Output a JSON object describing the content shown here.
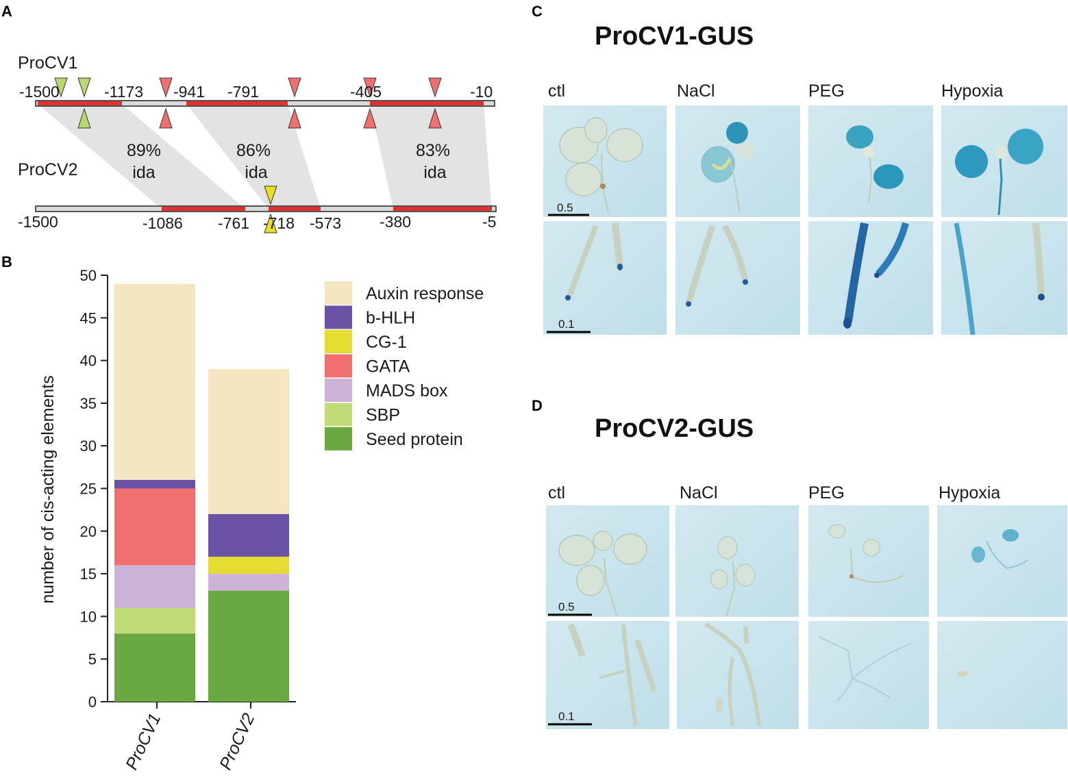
{
  "panels": {
    "a": "A",
    "b": "B",
    "c": "C",
    "d": "D"
  },
  "panel_a": {
    "procv1_label": "ProCV1",
    "procv2_label": "ProCV2",
    "procv1_positions": [
      "-1500",
      "-1173",
      "-941",
      "-791",
      "-405",
      "-10"
    ],
    "procv2_positions": [
      "-1500",
      "-1086",
      "-761",
      "-718",
      "-573",
      "-380",
      "-5"
    ],
    "identity": [
      {
        "pct": "89%",
        "word": "ida"
      },
      {
        "pct": "86%",
        "word": "ida"
      },
      {
        "pct": "83%",
        "word": "ida"
      }
    ],
    "colors": {
      "region": "#e03030",
      "gata_marker": "#f07070",
      "sbp_marker": "#b8d870",
      "cg1_marker": "#e8e020",
      "shade": "#e3e3e3"
    }
  },
  "chart_data": {
    "type": "bar",
    "stacked": true,
    "categories": [
      "ProCV1",
      "ProCV2"
    ],
    "ylabel": "number of cis-acting elements",
    "ylim": [
      0,
      50
    ],
    "yticks": [
      0,
      5,
      10,
      15,
      20,
      25,
      30,
      35,
      40,
      45,
      50
    ],
    "legend_position": "right",
    "series": [
      {
        "name": "Seed protein",
        "values": [
          8,
          13
        ],
        "color": "#6aa842"
      },
      {
        "name": "SBP",
        "values": [
          3,
          0
        ],
        "color": "#bfdc78"
      },
      {
        "name": "MADS box",
        "values": [
          5,
          2
        ],
        "color": "#ccb4d8"
      },
      {
        "name": "GATA",
        "values": [
          9,
          0
        ],
        "color": "#f07070"
      },
      {
        "name": "CG-1",
        "values": [
          0,
          2
        ],
        "color": "#e4dc30"
      },
      {
        "name": "b-HLH",
        "values": [
          1,
          5
        ],
        "color": "#6a52a4"
      },
      {
        "name": "Auxin response",
        "values": [
          23,
          17
        ],
        "color": "#f5e6c3"
      }
    ],
    "legend_order": [
      "Auxin response",
      "b-HLH",
      "CG-1",
      "GATA",
      "MADS box",
      "SBP",
      "Seed protein"
    ]
  },
  "panel_c": {
    "title": "ProCV1-GUS",
    "conditions": [
      "ctl",
      "NaCl",
      "PEG",
      "Hypoxia"
    ],
    "scale_top": "0.5",
    "scale_bottom": "0.1"
  },
  "panel_d": {
    "title": "ProCV2-GUS",
    "conditions": [
      "ctl",
      "NaCl",
      "PEG",
      "Hypoxia"
    ],
    "scale_top": "0.5",
    "scale_bottom": "0.1"
  }
}
